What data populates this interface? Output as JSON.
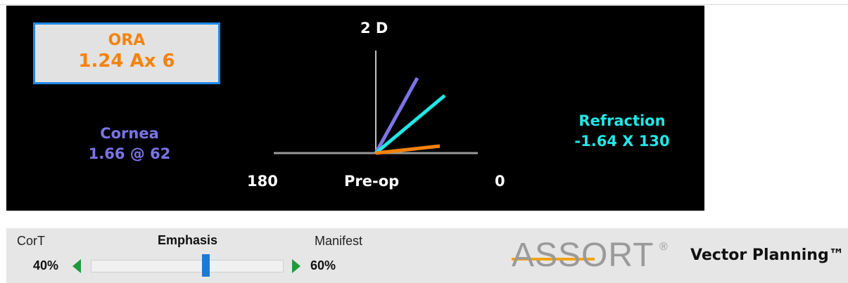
{
  "ora": {
    "title": "ORA",
    "value": "1.24 Ax 6",
    "color": "#f5820a"
  },
  "cornea": {
    "title": "Cornea",
    "value": "1.66 @ 62",
    "color": "#7b74e6"
  },
  "refraction": {
    "title": "Refraction",
    "value": "-1.64 X 130",
    "color": "#22e6e6"
  },
  "plot": {
    "scale_label": "2 D",
    "left_label": "180",
    "center_label": "Pre-op",
    "right_label": "0"
  },
  "emphasis": {
    "left_label": "CorT",
    "center_label": "Emphasis",
    "right_label": "Manifest",
    "left_percent": "40%",
    "right_percent": "60%",
    "slider_value": 0.6
  },
  "brand": {
    "logo_text": "ASSORT",
    "registered": "®",
    "product": "Vector Planning™"
  }
}
